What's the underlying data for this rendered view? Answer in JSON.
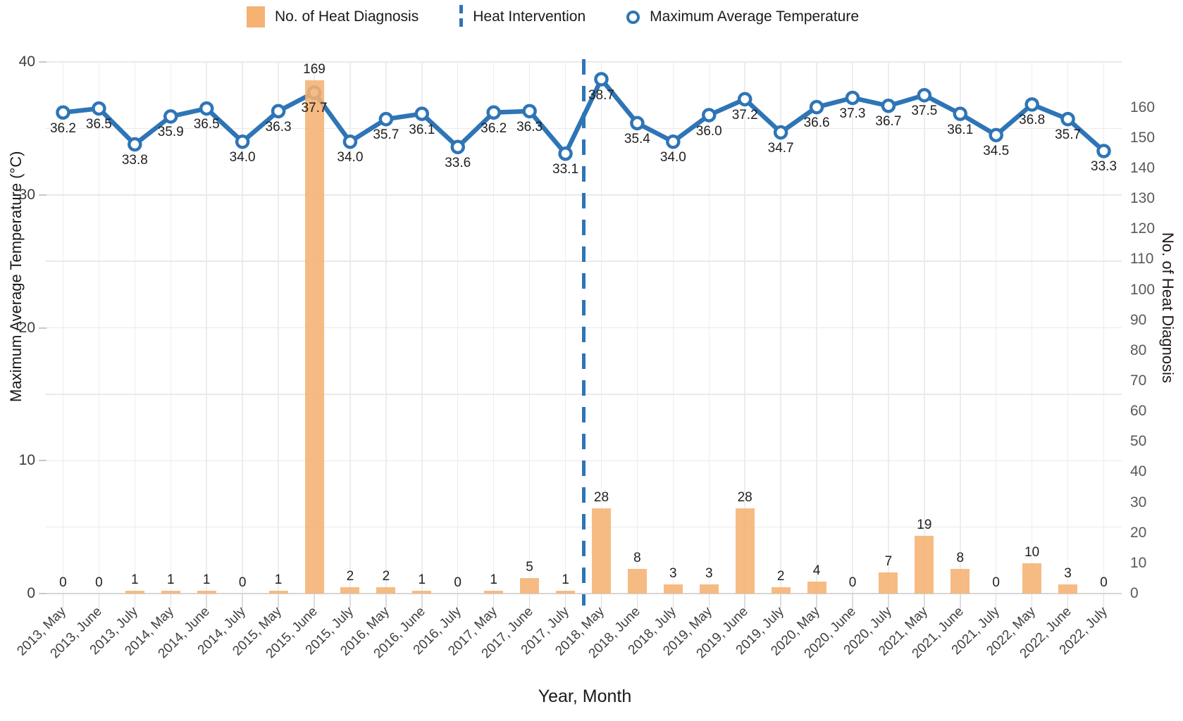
{
  "legend": {
    "items": [
      {
        "label": "No. of Heat Diagnosis",
        "marker": "bar-swatch"
      },
      {
        "label": "Heat Intervention",
        "marker": "dashed-line-swatch"
      },
      {
        "label": "Maximum Average Temperature",
        "marker": "circle-marker-swatch"
      }
    ]
  },
  "axes": {
    "left_title": "Maximum Average Temperature (°C)",
    "right_title": "No. of Heat Diagnosis",
    "x_title": "Year, Month",
    "left_ticks": [
      0,
      10,
      20,
      30,
      40
    ],
    "right_ticks": [
      0,
      10,
      20,
      30,
      40,
      50,
      60,
      70,
      80,
      90,
      100,
      110,
      120,
      130,
      140,
      150,
      160
    ]
  },
  "colors": {
    "bar": "#F5B272",
    "line": "#2E75B6",
    "grid_vertical": "#EDEDED",
    "grid_horizontal": "#E9E9E9",
    "baseline": "#D6D6D6",
    "left_tick_text": "#3D3D3D",
    "right_tick_text": "#595959",
    "value_label_text": "#1F1F1F"
  },
  "chart_data": {
    "type": "combo-bar-line",
    "title": "",
    "xlabel": "Year, Month",
    "ylabel_left": "Maximum Average Temperature (°C)",
    "ylabel_right": "No. of Heat Diagnosis",
    "legend_position": "top",
    "grid": true,
    "left_axis": {
      "min": 0,
      "max": 40,
      "tick_step": 10,
      "gridline_step": 5
    },
    "right_axis": {
      "min": 0,
      "max": 160,
      "tick_step": 10
    },
    "categories": [
      "2013, May",
      "2013, June",
      "2013, July",
      "2014, May",
      "2014, June",
      "2014, July",
      "2015, May",
      "2015, June",
      "2015, July",
      "2016, May",
      "2016, June",
      "2016, July",
      "2017, May",
      "2017, June",
      "2017, July",
      "2018, May",
      "2018, June",
      "2018, July",
      "2019, May",
      "2019, June",
      "2019, July",
      "2020, May",
      "2020, June",
      "2020, July",
      "2021, May",
      "2021, June",
      "2021, July",
      "2022, May",
      "2022, June",
      "2022, July"
    ],
    "series": [
      {
        "name": "No. of Heat Diagnosis",
        "type": "bar",
        "axis": "right",
        "values": [
          0,
          0,
          1,
          1,
          1,
          0,
          1,
          169,
          2,
          2,
          1,
          0,
          1,
          5,
          1,
          28,
          8,
          3,
          3,
          28,
          2,
          4,
          0,
          7,
          19,
          8,
          0,
          10,
          3,
          0
        ]
      },
      {
        "name": "Maximum Average Temperature",
        "type": "line",
        "axis": "left",
        "unit": "°C",
        "values": [
          36.2,
          36.5,
          33.8,
          35.9,
          36.5,
          34.0,
          36.3,
          37.7,
          34.0,
          35.7,
          36.1,
          33.6,
          36.2,
          36.3,
          33.1,
          38.7,
          35.4,
          34.0,
          36.0,
          37.2,
          34.7,
          36.6,
          37.3,
          36.7,
          37.5,
          36.1,
          34.5,
          36.8,
          35.7,
          33.3
        ]
      }
    ],
    "heat_intervention": {
      "between": [
        "2017, July",
        "2018, May"
      ],
      "boundary_index": 15
    }
  }
}
